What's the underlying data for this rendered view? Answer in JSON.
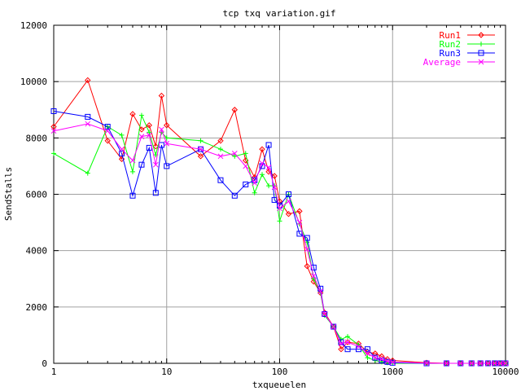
{
  "chart_data": {
    "type": "line",
    "title": "tcp txq variation.gif",
    "xlabel": "txqueuelen",
    "ylabel": "SendStalls",
    "x_scale": "log",
    "xlim": [
      1,
      10000
    ],
    "ylim": [
      0,
      12000
    ],
    "grid": true,
    "legend_position": "top-right",
    "x_ticks": [
      {
        "value": 1,
        "label": "1"
      },
      {
        "value": 10,
        "label": "10"
      },
      {
        "value": 100,
        "label": "100"
      },
      {
        "value": 1000,
        "label": "1000"
      },
      {
        "value": 10000,
        "label": "10000"
      }
    ],
    "y_ticks": [
      {
        "value": 0,
        "label": "0"
      },
      {
        "value": 2000,
        "label": "2000"
      },
      {
        "value": 4000,
        "label": "4000"
      },
      {
        "value": 6000,
        "label": "6000"
      },
      {
        "value": 8000,
        "label": "8000"
      },
      {
        "value": 10000,
        "label": "10000"
      },
      {
        "value": 12000,
        "label": "12000"
      }
    ],
    "series": [
      {
        "name": "Run1",
        "color": "#ff0000",
        "marker": "diamond",
        "x": [
          1,
          2,
          3,
          4,
          5,
          6,
          7,
          8,
          9,
          10,
          20,
          30,
          40,
          50,
          60,
          70,
          80,
          90,
          100,
          120,
          150,
          175,
          200,
          230,
          250,
          300,
          350,
          400,
          500,
          600,
          700,
          800,
          900,
          1000,
          2000,
          3000,
          4000,
          5000,
          6000,
          7000,
          8000,
          9000,
          10000
        ],
        "y": [
          8400,
          10050,
          7900,
          7250,
          8850,
          8300,
          8450,
          7700,
          9500,
          8450,
          7350,
          7900,
          9000,
          7200,
          6600,
          7600,
          6800,
          6650,
          5750,
          5300,
          5400,
          3450,
          2900,
          2500,
          1800,
          1300,
          500,
          750,
          700,
          400,
          350,
          250,
          150,
          100,
          20,
          0,
          0,
          0,
          0,
          0,
          0,
          0,
          0
        ]
      },
      {
        "name": "Run2",
        "color": "#00ff00",
        "marker": "plus",
        "x": [
          1,
          2,
          3,
          4,
          5,
          6,
          7,
          8,
          9,
          10,
          20,
          30,
          40,
          50,
          60,
          70,
          80,
          90,
          100,
          120,
          150,
          175,
          200,
          230,
          250,
          300,
          350,
          400,
          500,
          600,
          700,
          800,
          900,
          1000,
          2000,
          3000,
          4000,
          5000,
          6000,
          7000,
          8000,
          9000,
          10000
        ],
        "y": [
          7450,
          6750,
          8400,
          8100,
          6800,
          8800,
          8200,
          7400,
          8200,
          8000,
          7900,
          7600,
          7350,
          7450,
          6050,
          6700,
          6300,
          6300,
          5050,
          6000,
          4950,
          4300,
          3000,
          2500,
          1700,
          1300,
          850,
          950,
          650,
          200,
          100,
          50,
          20,
          0,
          0,
          0,
          0,
          0,
          0,
          0,
          0,
          0,
          0
        ]
      },
      {
        "name": "Run3",
        "color": "#0000ff",
        "marker": "square",
        "x": [
          1,
          2,
          3,
          4,
          5,
          6,
          7,
          8,
          9,
          10,
          20,
          30,
          40,
          50,
          60,
          70,
          80,
          90,
          100,
          120,
          150,
          175,
          200,
          230,
          250,
          300,
          350,
          400,
          500,
          600,
          700,
          800,
          900,
          1000,
          2000,
          3000,
          4000,
          5000,
          6000,
          7000,
          8000,
          9000,
          10000
        ],
        "y": [
          8950,
          8750,
          8400,
          7450,
          5950,
          7050,
          7650,
          6050,
          7750,
          7000,
          7600,
          6500,
          5950,
          6350,
          6500,
          7000,
          7750,
          5800,
          5600,
          6000,
          4600,
          4450,
          3400,
          2650,
          1750,
          1300,
          750,
          500,
          500,
          500,
          200,
          100,
          50,
          20,
          0,
          0,
          0,
          0,
          0,
          0,
          0,
          0,
          0
        ]
      },
      {
        "name": "Average",
        "color": "#ff00ff",
        "marker": "cross",
        "x": [
          1,
          2,
          3,
          4,
          5,
          6,
          7,
          8,
          9,
          10,
          20,
          30,
          40,
          50,
          60,
          70,
          80,
          90,
          100,
          120,
          150,
          175,
          200,
          230,
          250,
          300,
          350,
          400,
          500,
          600,
          700,
          800,
          900,
          1000,
          2000,
          3000,
          4000,
          5000,
          6000,
          7000,
          8000,
          9000,
          10000
        ],
        "y": [
          8250,
          8500,
          8250,
          7600,
          7200,
          8050,
          8100,
          7050,
          8300,
          7800,
          7600,
          7350,
          7450,
          7000,
          6400,
          7100,
          6950,
          6250,
          5500,
          5750,
          5000,
          4050,
          3100,
          2550,
          1750,
          1300,
          700,
          750,
          600,
          350,
          200,
          150,
          70,
          40,
          10,
          0,
          0,
          0,
          0,
          0,
          0,
          0,
          0
        ]
      }
    ]
  }
}
